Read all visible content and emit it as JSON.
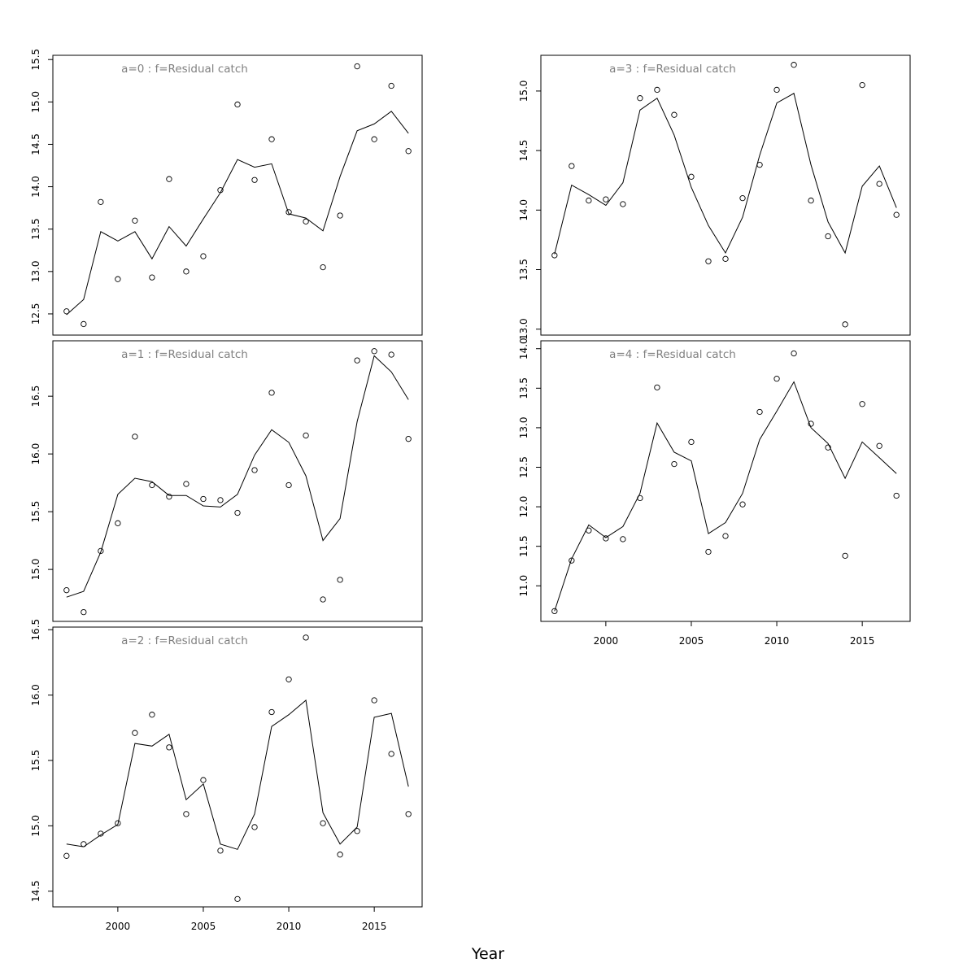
{
  "chart_data": {
    "type": "line",
    "xlabel": "Year",
    "x_ticks": [
      2000,
      2005,
      2010,
      2015
    ],
    "panels": [
      {
        "title": "a=0  :  f=Residual catch",
        "ylim": [
          12.25,
          15.55
        ],
        "y_ticks": [
          12.5,
          13.0,
          13.5,
          14.0,
          14.5,
          15.0,
          15.5
        ],
        "series": [
          {
            "kind": "observed",
            "x": [
              1997,
              1998,
              1999,
              2000,
              2001,
              2002,
              2003,
              2004,
              2005,
              2006,
              2007,
              2008,
              2009,
              2010,
              2011,
              2012,
              2013,
              2014,
              2015,
              2016,
              2017
            ],
            "values": [
              12.53,
              12.38,
              13.82,
              12.91,
              13.6,
              12.93,
              14.09,
              13.0,
              13.18,
              13.96,
              14.97,
              14.08,
              14.56,
              13.7,
              13.59,
              13.05,
              13.66,
              15.42,
              14.56,
              15.19,
              14.42
            ]
          },
          {
            "kind": "fitted",
            "x": [
              1997,
              1998,
              1999,
              2000,
              2001,
              2002,
              2003,
              2004,
              2005,
              2006,
              2007,
              2008,
              2009,
              2010,
              2011,
              2012,
              2013,
              2014,
              2015,
              2016,
              2017
            ],
            "values": [
              12.49,
              12.67,
              13.47,
              13.36,
              13.47,
              13.15,
              13.53,
              13.3,
              13.62,
              13.93,
              14.32,
              14.23,
              14.27,
              13.68,
              13.63,
              13.48,
              14.12,
              14.66,
              14.74,
              14.89,
              14.63
            ]
          }
        ]
      },
      {
        "title": "a=3  :  f=Residual catch",
        "ylim": [
          12.95,
          15.3
        ],
        "y_ticks": [
          13.0,
          13.5,
          14.0,
          14.5,
          15.0
        ],
        "series": [
          {
            "kind": "observed",
            "x": [
              1997,
              1998,
              1999,
              2000,
              2001,
              2002,
              2003,
              2004,
              2005,
              2006,
              2007,
              2008,
              2009,
              2010,
              2011,
              2012,
              2013,
              2014,
              2015,
              2016,
              2017
            ],
            "values": [
              13.62,
              14.37,
              14.08,
              14.09,
              14.05,
              14.94,
              15.01,
              14.8,
              14.28,
              13.57,
              13.59,
              14.1,
              14.38,
              15.01,
              15.22,
              14.08,
              13.78,
              13.04,
              15.05,
              14.22,
              13.96
            ]
          },
          {
            "kind": "fitted",
            "x": [
              1997,
              1998,
              1999,
              2000,
              2001,
              2002,
              2003,
              2004,
              2005,
              2006,
              2007,
              2008,
              2009,
              2010,
              2011,
              2012,
              2013,
              2014,
              2015,
              2016,
              2017
            ],
            "values": [
              13.63,
              14.21,
              14.13,
              14.04,
              14.23,
              14.84,
              14.94,
              14.63,
              14.19,
              13.87,
              13.64,
              13.94,
              14.46,
              14.9,
              14.98,
              14.38,
              13.9,
              13.64,
              14.2,
              14.37,
              14.02
            ]
          }
        ]
      },
      {
        "title": "a=1  :  f=Residual catch",
        "ylim": [
          14.55,
          16.98
        ],
        "y_ticks": [
          15.0,
          15.5,
          16.0,
          16.5
        ],
        "series": [
          {
            "kind": "observed",
            "x": [
              1997,
              1998,
              1999,
              2000,
              2001,
              2002,
              2003,
              2004,
              2005,
              2006,
              2007,
              2008,
              2009,
              2010,
              2011,
              2012,
              2013,
              2014,
              2015,
              2016,
              2017
            ],
            "values": [
              14.82,
              14.63,
              15.16,
              15.4,
              16.15,
              15.73,
              15.63,
              15.74,
              15.61,
              15.6,
              15.49,
              15.86,
              16.53,
              15.73,
              16.16,
              14.74,
              14.91,
              16.81,
              16.89,
              16.86,
              16.13
            ]
          },
          {
            "kind": "fitted",
            "x": [
              1997,
              1998,
              1999,
              2000,
              2001,
              2002,
              2003,
              2004,
              2005,
              2006,
              2007,
              2008,
              2009,
              2010,
              2011,
              2012,
              2013,
              2014,
              2015,
              2016,
              2017
            ],
            "values": [
              14.76,
              14.81,
              15.15,
              15.65,
              15.79,
              15.76,
              15.64,
              15.64,
              15.55,
              15.54,
              15.65,
              15.99,
              16.21,
              16.1,
              15.81,
              15.25,
              15.44,
              16.28,
              16.85,
              16.71,
              16.47
            ]
          }
        ]
      },
      {
        "title": "a=4  :  f=Residual catch",
        "ylim": [
          10.55,
          14.1
        ],
        "y_ticks": [
          11.0,
          11.5,
          12.0,
          12.5,
          13.0,
          13.5,
          14.0
        ],
        "series": [
          {
            "kind": "observed",
            "x": [
              1997,
              1998,
              1999,
              2000,
              2001,
              2002,
              2003,
              2004,
              2005,
              2006,
              2007,
              2008,
              2009,
              2010,
              2011,
              2012,
              2013,
              2014,
              2015,
              2016,
              2017
            ],
            "values": [
              10.68,
              11.32,
              11.7,
              11.6,
              11.59,
              12.11,
              13.51,
              12.54,
              12.82,
              11.43,
              11.63,
              12.03,
              13.2,
              13.62,
              13.94,
              13.05,
              12.75,
              11.38,
              13.3,
              12.77,
              12.14
            ]
          },
          {
            "kind": "fitted",
            "x": [
              1997,
              1998,
              1999,
              2000,
              2001,
              2002,
              2003,
              2004,
              2005,
              2006,
              2007,
              2008,
              2009,
              2010,
              2011,
              2012,
              2013,
              2014,
              2015,
              2016,
              2017
            ],
            "values": [
              10.68,
              11.34,
              11.77,
              11.61,
              11.75,
              12.17,
              13.06,
              12.69,
              12.58,
              11.66,
              11.8,
              12.17,
              12.85,
              13.21,
              13.58,
              13.0,
              12.8,
              12.36,
              12.82,
              12.62,
              12.42
            ]
          }
        ]
      },
      {
        "title": "a=2  :  f=Residual catch",
        "ylim": [
          14.38,
          16.52
        ],
        "y_ticks": [
          14.5,
          15.0,
          15.5,
          16.0,
          16.5
        ],
        "series": [
          {
            "kind": "observed",
            "x": [
              1997,
              1998,
              1999,
              2000,
              2001,
              2002,
              2003,
              2004,
              2005,
              2006,
              2007,
              2008,
              2009,
              2010,
              2011,
              2012,
              2013,
              2014,
              2015,
              2016,
              2017
            ],
            "values": [
              14.77,
              14.86,
              14.94,
              15.02,
              15.71,
              15.85,
              15.6,
              15.09,
              15.35,
              14.81,
              14.44,
              14.99,
              15.87,
              16.12,
              16.44,
              15.02,
              14.78,
              14.96,
              15.96,
              15.55,
              15.09
            ]
          },
          {
            "kind": "fitted",
            "x": [
              1997,
              1998,
              1999,
              2000,
              2001,
              2002,
              2003,
              2004,
              2005,
              2006,
              2007,
              2008,
              2009,
              2010,
              2011,
              2012,
              2013,
              2014,
              2015,
              2016,
              2017
            ],
            "values": [
              14.86,
              14.84,
              14.93,
              15.01,
              15.63,
              15.61,
              15.7,
              15.2,
              15.32,
              14.86,
              14.82,
              15.09,
              15.76,
              15.85,
              15.96,
              15.1,
              14.86,
              14.99,
              15.83,
              15.86,
              15.3
            ]
          }
        ]
      }
    ]
  }
}
